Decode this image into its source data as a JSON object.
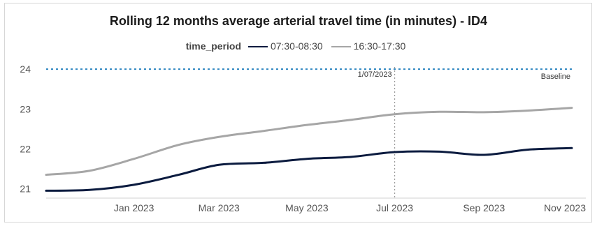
{
  "chart_data": {
    "type": "line",
    "title": "Rolling 12 months average arterial travel time (in minutes) - ID4",
    "xlabel": "",
    "ylabel": "",
    "legend_title": "time_period",
    "legend_position": "top-center",
    "x": [
      "2022-11-01",
      "2022-12-01",
      "2023-01-01",
      "2023-02-01",
      "2023-03-01",
      "2023-04-01",
      "2023-05-01",
      "2023-06-01",
      "2023-07-01",
      "2023-08-01",
      "2023-09-01",
      "2023-10-01",
      "2023-11-01"
    ],
    "xlim": [
      "2022-11-01",
      "2023-11-01"
    ],
    "x_ticks": [
      "Jan 2023",
      "Mar 2023",
      "May 2023",
      "Jul 2023",
      "Sep 2023",
      "Nov 2023"
    ],
    "ylim": [
      20.8,
      24.3
    ],
    "y_ticks": [
      21,
      22,
      23,
      24
    ],
    "series": [
      {
        "name": "07:30-08:30",
        "color": "#0b1b3f",
        "values": [
          20.95,
          20.97,
          21.1,
          21.35,
          21.6,
          21.65,
          21.75,
          21.8,
          21.92,
          21.93,
          21.85,
          21.98,
          22.02
        ]
      },
      {
        "name": "16:30-17:30",
        "color": "#a6a6a6",
        "values": [
          21.35,
          21.45,
          21.75,
          22.1,
          22.3,
          22.45,
          22.6,
          22.73,
          22.87,
          22.93,
          22.92,
          22.96,
          23.03
        ]
      }
    ],
    "reference_lines": [
      {
        "axis": "y",
        "value": 24,
        "label": "Baseline",
        "color": "#2e86c1",
        "style": "dotted"
      },
      {
        "axis": "x",
        "value": "2023-07-01",
        "label": "1/07/2023",
        "color": "#9a9a9a",
        "style": "dotted"
      }
    ],
    "grid": false
  }
}
